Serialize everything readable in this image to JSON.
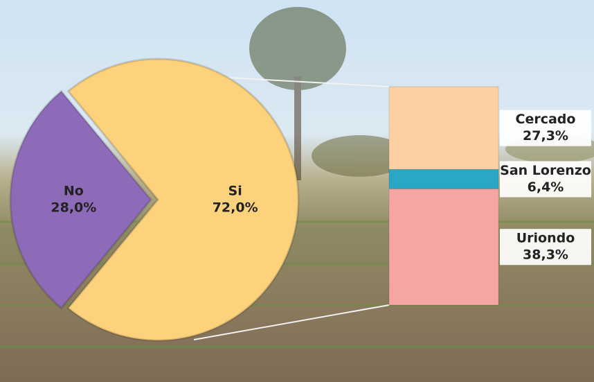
{
  "chart_data": [
    {
      "type": "pie",
      "categories": [
        "No",
        "Si"
      ],
      "values": [
        28.0,
        72.0
      ],
      "value_labels": [
        "28,0%",
        "72,0%"
      ],
      "colors": [
        "#8e6bb8",
        "#fdd27c"
      ],
      "exploded": "No"
    },
    {
      "type": "stacked-bar",
      "series": [
        {
          "name": "Cercado",
          "color": "#fcd0a2",
          "values": [
            27.3
          ],
          "value_labels": [
            "27,3%"
          ]
        },
        {
          "name": "San Lorenzo",
          "color": "#2aa6c6",
          "values": [
            6.4
          ],
          "value_labels": [
            "6,4%"
          ]
        },
        {
          "name": "Uriondo",
          "color": "#f6a6a2",
          "values": [
            38.3
          ],
          "value_labels": [
            "38,3%"
          ]
        }
      ]
    }
  ]
}
